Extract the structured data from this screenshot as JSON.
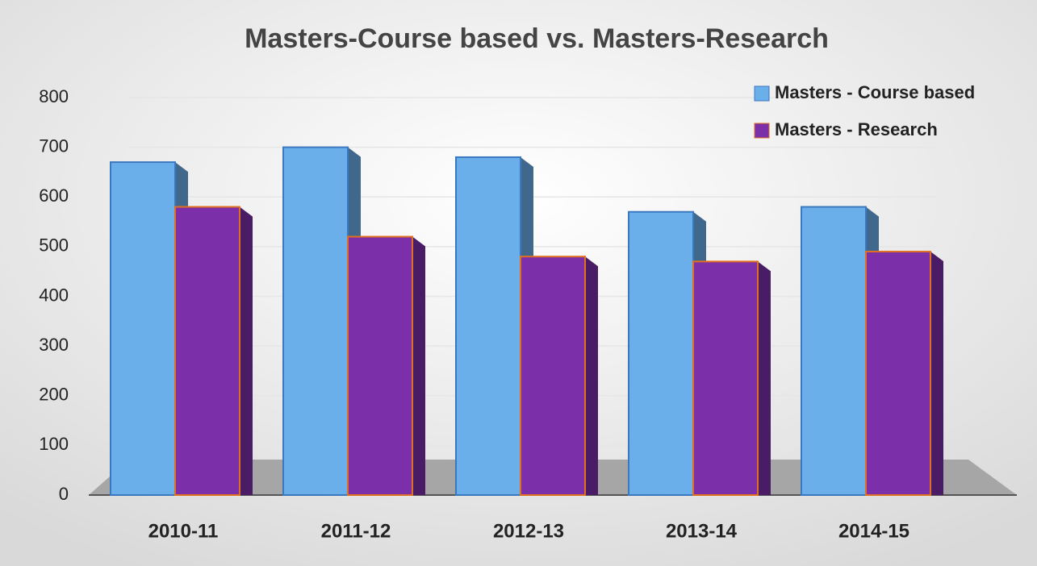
{
  "chart_data": {
    "type": "bar",
    "title": "Masters-Course based vs. Masters-Research",
    "categories": [
      "2010-11",
      "2011-12",
      "2012-13",
      "2013-14",
      "2014-15"
    ],
    "series": [
      {
        "name": "Masters - Course based",
        "color": "#6aaeea",
        "values": [
          670,
          700,
          680,
          570,
          580
        ]
      },
      {
        "name": "Masters - Research",
        "color": "#7b2fa8",
        "values": [
          580,
          520,
          480,
          470,
          490
        ]
      }
    ],
    "ylim": [
      0,
      800
    ],
    "yticks": [
      0,
      100,
      200,
      300,
      400,
      500,
      600,
      700,
      800
    ],
    "grid": true,
    "legend": "top-right"
  }
}
